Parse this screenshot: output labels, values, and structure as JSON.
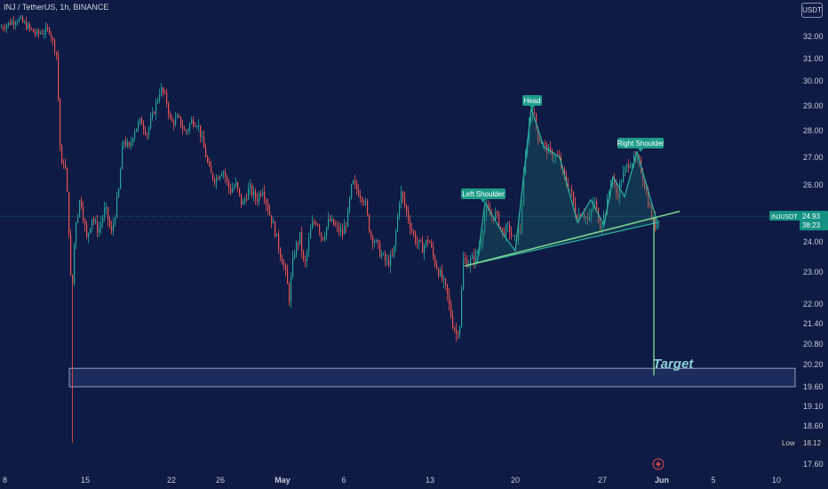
{
  "header": {
    "symbol_line": "INJ / TetherUS, 1h, BINANCE",
    "currency_button": "USDT"
  },
  "price_tag": {
    "ticker": "INJUSDT",
    "price": "24.93",
    "countdown": "38:23"
  },
  "low_tag": {
    "label": "Low",
    "value": "18.12"
  },
  "colors": {
    "background": "#0d1b45",
    "up": "#26a69a",
    "down": "#ef5350",
    "pattern_fill": "#1d6b6a",
    "neckline": "#7fcf8f",
    "label_bg": "#1e9c8a",
    "target_zone": "#1c2c5c"
  },
  "chart_data": {
    "type": "candlestick",
    "title": "INJ / TetherUS, 1h, BINANCE",
    "y_ticks": [
      "32.00",
      "31.00",
      "30.00",
      "29.00",
      "28.00",
      "27.00",
      "26.00",
      "25.00",
      "24.00",
      "23.00",
      "22.00",
      "21.40",
      "20.80",
      "20.20",
      "19.60",
      "19.10",
      "18.60",
      "18.12",
      "17.60"
    ],
    "x_ticks": [
      "8",
      "15",
      "22",
      "26",
      "May",
      "6",
      "13",
      "20",
      "27",
      "Jun",
      "5",
      "10"
    ],
    "last_price": 24.93,
    "low": 18.12,
    "price_path": [
      [
        0,
        32.4
      ],
      [
        20,
        32.8
      ],
      [
        40,
        32.1
      ],
      [
        55,
        32.3
      ],
      [
        63,
        31.2
      ],
      [
        68,
        26.5
      ],
      [
        72,
        27.0
      ],
      [
        76,
        25.2
      ],
      [
        80,
        22.0
      ],
      [
        84,
        24.6
      ],
      [
        90,
        25.6
      ],
      [
        97,
        24.1
      ],
      [
        103,
        24.9
      ],
      [
        110,
        24.4
      ],
      [
        118,
        25.2
      ],
      [
        125,
        24.3
      ],
      [
        133,
        25.8
      ],
      [
        138,
        27.7
      ],
      [
        145,
        27.3
      ],
      [
        150,
        28.0
      ],
      [
        158,
        28.4
      ],
      [
        165,
        27.9
      ],
      [
        172,
        28.7
      ],
      [
        180,
        29.7
      ],
      [
        186,
        29.3
      ],
      [
        192,
        28.3
      ],
      [
        200,
        28.5
      ],
      [
        208,
        27.9
      ],
      [
        215,
        28.4
      ],
      [
        222,
        28.3
      ],
      [
        230,
        27.2
      ],
      [
        236,
        26.4
      ],
      [
        242,
        26.2
      ],
      [
        250,
        26.6
      ],
      [
        258,
        25.8
      ],
      [
        265,
        26.0
      ],
      [
        272,
        25.3
      ],
      [
        280,
        25.9
      ],
      [
        288,
        25.5
      ],
      [
        295,
        25.9
      ],
      [
        302,
        25.1
      ],
      [
        308,
        24.5
      ],
      [
        315,
        23.6
      ],
      [
        320,
        23.1
      ],
      [
        325,
        22.2
      ],
      [
        330,
        23.6
      ],
      [
        337,
        24.2
      ],
      [
        342,
        23.1
      ],
      [
        350,
        24.6
      ],
      [
        356,
        24.8
      ],
      [
        362,
        24.1
      ],
      [
        370,
        24.8
      ],
      [
        378,
        24.5
      ],
      [
        385,
        24.3
      ],
      [
        390,
        24.8
      ],
      [
        396,
        26.1
      ],
      [
        402,
        25.8
      ],
      [
        410,
        25.5
      ],
      [
        416,
        24.3
      ],
      [
        422,
        24.0
      ],
      [
        428,
        23.6
      ],
      [
        435,
        23.3
      ],
      [
        442,
        23.5
      ],
      [
        450,
        25.8
      ],
      [
        456,
        25.2
      ],
      [
        462,
        24.5
      ],
      [
        468,
        24.0
      ],
      [
        475,
        23.8
      ],
      [
        482,
        24.1
      ],
      [
        488,
        23.4
      ],
      [
        495,
        22.9
      ],
      [
        502,
        22.4
      ],
      [
        508,
        21.5
      ],
      [
        513,
        21.1
      ],
      [
        517,
        21.4
      ],
      [
        521,
        23.4
      ],
      [
        527,
        23.3
      ],
      [
        534,
        23.5
      ],
      [
        540,
        23.9
      ],
      [
        546,
        25.2
      ],
      [
        552,
        24.9
      ],
      [
        558,
        25.0
      ],
      [
        565,
        24.3
      ],
      [
        572,
        24.5
      ],
      [
        578,
        24.0
      ],
      [
        585,
        24.5
      ],
      [
        590,
        26.7
      ],
      [
        595,
        28.3
      ],
      [
        599,
        28.9
      ],
      [
        605,
        27.8
      ],
      [
        612,
        27.4
      ],
      [
        620,
        27.1
      ],
      [
        628,
        27.0
      ],
      [
        635,
        26.2
      ],
      [
        642,
        25.8
      ],
      [
        648,
        24.9
      ],
      [
        655,
        25.1
      ],
      [
        662,
        24.7
      ],
      [
        668,
        25.5
      ],
      [
        675,
        24.6
      ],
      [
        682,
        25.2
      ],
      [
        688,
        26.3
      ],
      [
        694,
        25.6
      ],
      [
        700,
        26.3
      ],
      [
        707,
        26.8
      ],
      [
        713,
        26.9
      ],
      [
        720,
        26.7
      ],
      [
        727,
        25.7
      ],
      [
        733,
        24.9
      ],
      [
        737,
        24.6
      ],
      [
        741,
        24.93
      ]
    ]
  },
  "annotations": {
    "left_shoulder": "Left Shoulder",
    "head": "Head",
    "right_shoulder": "Right Shoulder",
    "target": "Target",
    "target_zone": [
      19.6,
      20.1
    ],
    "neckline": [
      [
        523,
        23.2
      ],
      [
        765,
        25.1
      ]
    ],
    "pattern_polygon": [
      [
        523,
        23.2
      ],
      [
        537,
        23.3
      ],
      [
        546,
        25.4
      ],
      [
        566,
        24.3
      ],
      [
        580,
        23.7
      ],
      [
        598,
        28.9
      ],
      [
        612,
        27.4
      ],
      [
        630,
        27.0
      ],
      [
        650,
        24.7
      ],
      [
        665,
        25.5
      ],
      [
        680,
        24.6
      ],
      [
        690,
        26.3
      ],
      [
        703,
        25.6
      ],
      [
        717,
        27.2
      ],
      [
        740,
        24.7
      ]
    ],
    "target_line": {
      "x": 736,
      "from": 24.9,
      "to": 19.9
    }
  }
}
